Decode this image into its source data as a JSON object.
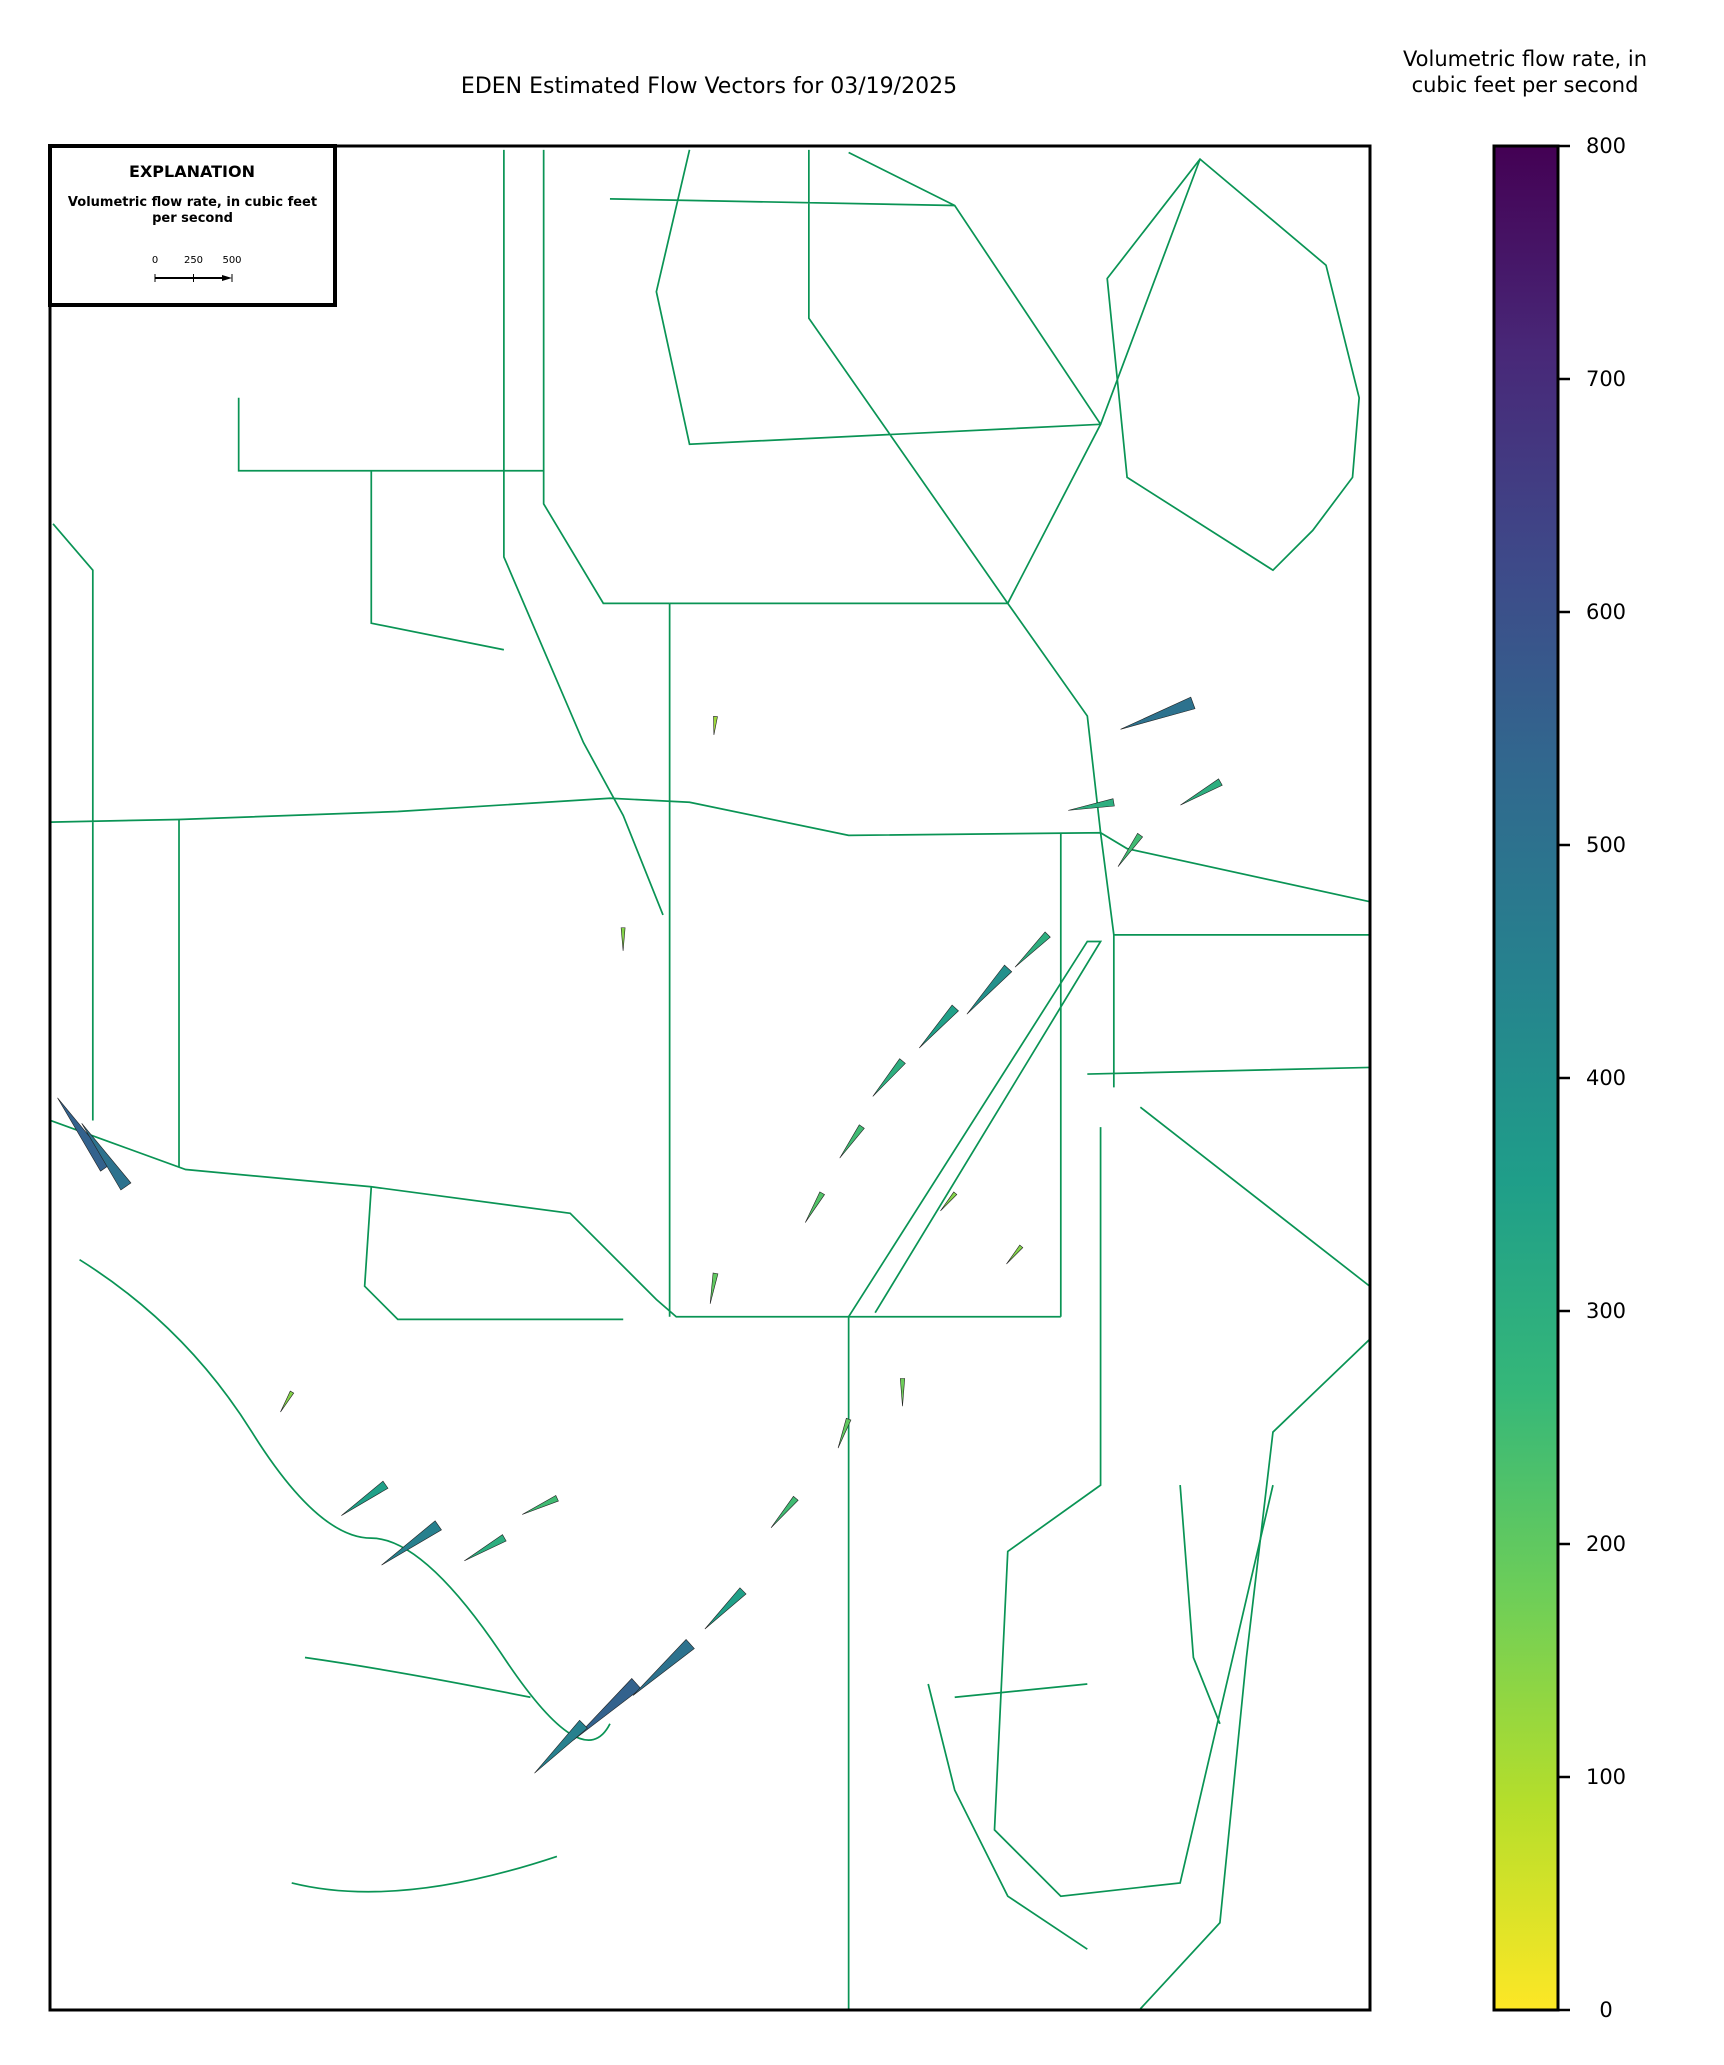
{
  "chart_data": {
    "type": "vector-map",
    "title": "EDEN Estimated Flow Vectors for 03/19/2025",
    "explanation": {
      "heading": "EXPLANATION",
      "label": "Volumetric flow rate, in cubic feet per second",
      "scale_ticks": [
        0,
        250,
        500
      ]
    },
    "colorbar": {
      "label": "Volumetric flow rate, in cubic feet per second",
      "lim": [
        0,
        800
      ],
      "ticks": [
        0,
        100,
        200,
        300,
        400,
        500,
        600,
        700,
        800
      ],
      "colormap": [
        "#fde725",
        "#b5de2b",
        "#6ece58",
        "#35b779",
        "#1f9e89",
        "#26828e",
        "#31688e",
        "#3e4989",
        "#482878",
        "#440154"
      ]
    },
    "xlim": [
      -81.45,
      -80.25
    ],
    "ylim": [
      25.1,
      26.75
    ],
    "vectors": [
      {
        "lon": -80.579,
        "lat": 26.022,
        "angle": 228,
        "value": 400
      },
      {
        "lon": -80.627,
        "lat": 25.987,
        "angle": 228,
        "value": 350
      },
      {
        "lon": -80.543,
        "lat": 26.052,
        "angle": 225,
        "value": 300
      },
      {
        "lon": -80.675,
        "lat": 25.94,
        "angle": 230,
        "value": 300
      },
      {
        "lon": -80.712,
        "lat": 25.882,
        "angle": 235,
        "value": 250
      },
      {
        "lon": -80.748,
        "lat": 25.823,
        "angle": 240,
        "value": 220
      },
      {
        "lon": -80.845,
        "lat": 25.752,
        "angle": 260,
        "value": 200
      },
      {
        "lon": -80.917,
        "lat": 25.389,
        "angle": 222,
        "value": 550
      },
      {
        "lon": -80.868,
        "lat": 25.424,
        "angle": 222,
        "value": 500
      },
      {
        "lon": -80.965,
        "lat": 25.353,
        "angle": 225,
        "value": 450
      },
      {
        "lon": -80.82,
        "lat": 25.471,
        "angle": 225,
        "value": 350
      },
      {
        "lon": -80.772,
        "lat": 25.553,
        "angle": 230,
        "value": 250
      },
      {
        "lon": -80.724,
        "lat": 25.623,
        "angle": 250,
        "value": 200
      },
      {
        "lon": -80.675,
        "lat": 25.659,
        "angle": 270,
        "value": 180
      },
      {
        "lon": -81.097,
        "lat": 25.529,
        "angle": 215,
        "value": 450
      },
      {
        "lon": -81.145,
        "lat": 25.565,
        "angle": 215,
        "value": 350
      },
      {
        "lon": -81.037,
        "lat": 25.518,
        "angle": 210,
        "value": 300
      },
      {
        "lon": -80.989,
        "lat": 25.553,
        "angle": 205,
        "value": 250
      },
      {
        "lon": -81.23,
        "lat": 25.647,
        "angle": 240,
        "value": 150
      },
      {
        "lon": -81.399,
        "lat": 25.846,
        "angle": 125,
        "value": 550
      },
      {
        "lon": -81.381,
        "lat": 25.829,
        "angle": 125,
        "value": 500
      },
      {
        "lon": -80.411,
        "lat": 26.257,
        "angle": 200,
        "value": 500
      },
      {
        "lon": -80.386,
        "lat": 26.187,
        "angle": 210,
        "value": 300
      },
      {
        "lon": -80.483,
        "lat": 26.169,
        "angle": 190,
        "value": 300
      },
      {
        "lon": -80.459,
        "lat": 26.14,
        "angle": 235,
        "value": 250
      },
      {
        "lon": -80.929,
        "lat": 26.058,
        "angle": 270,
        "value": 150
      },
      {
        "lon": -80.845,
        "lat": 26.245,
        "angle": 265,
        "value": 120
      },
      {
        "lon": -80.567,
        "lat": 25.776,
        "angle": 230,
        "value": 150
      },
      {
        "lon": -80.627,
        "lat": 25.823,
        "angle": 230,
        "value": 150
      }
    ]
  }
}
